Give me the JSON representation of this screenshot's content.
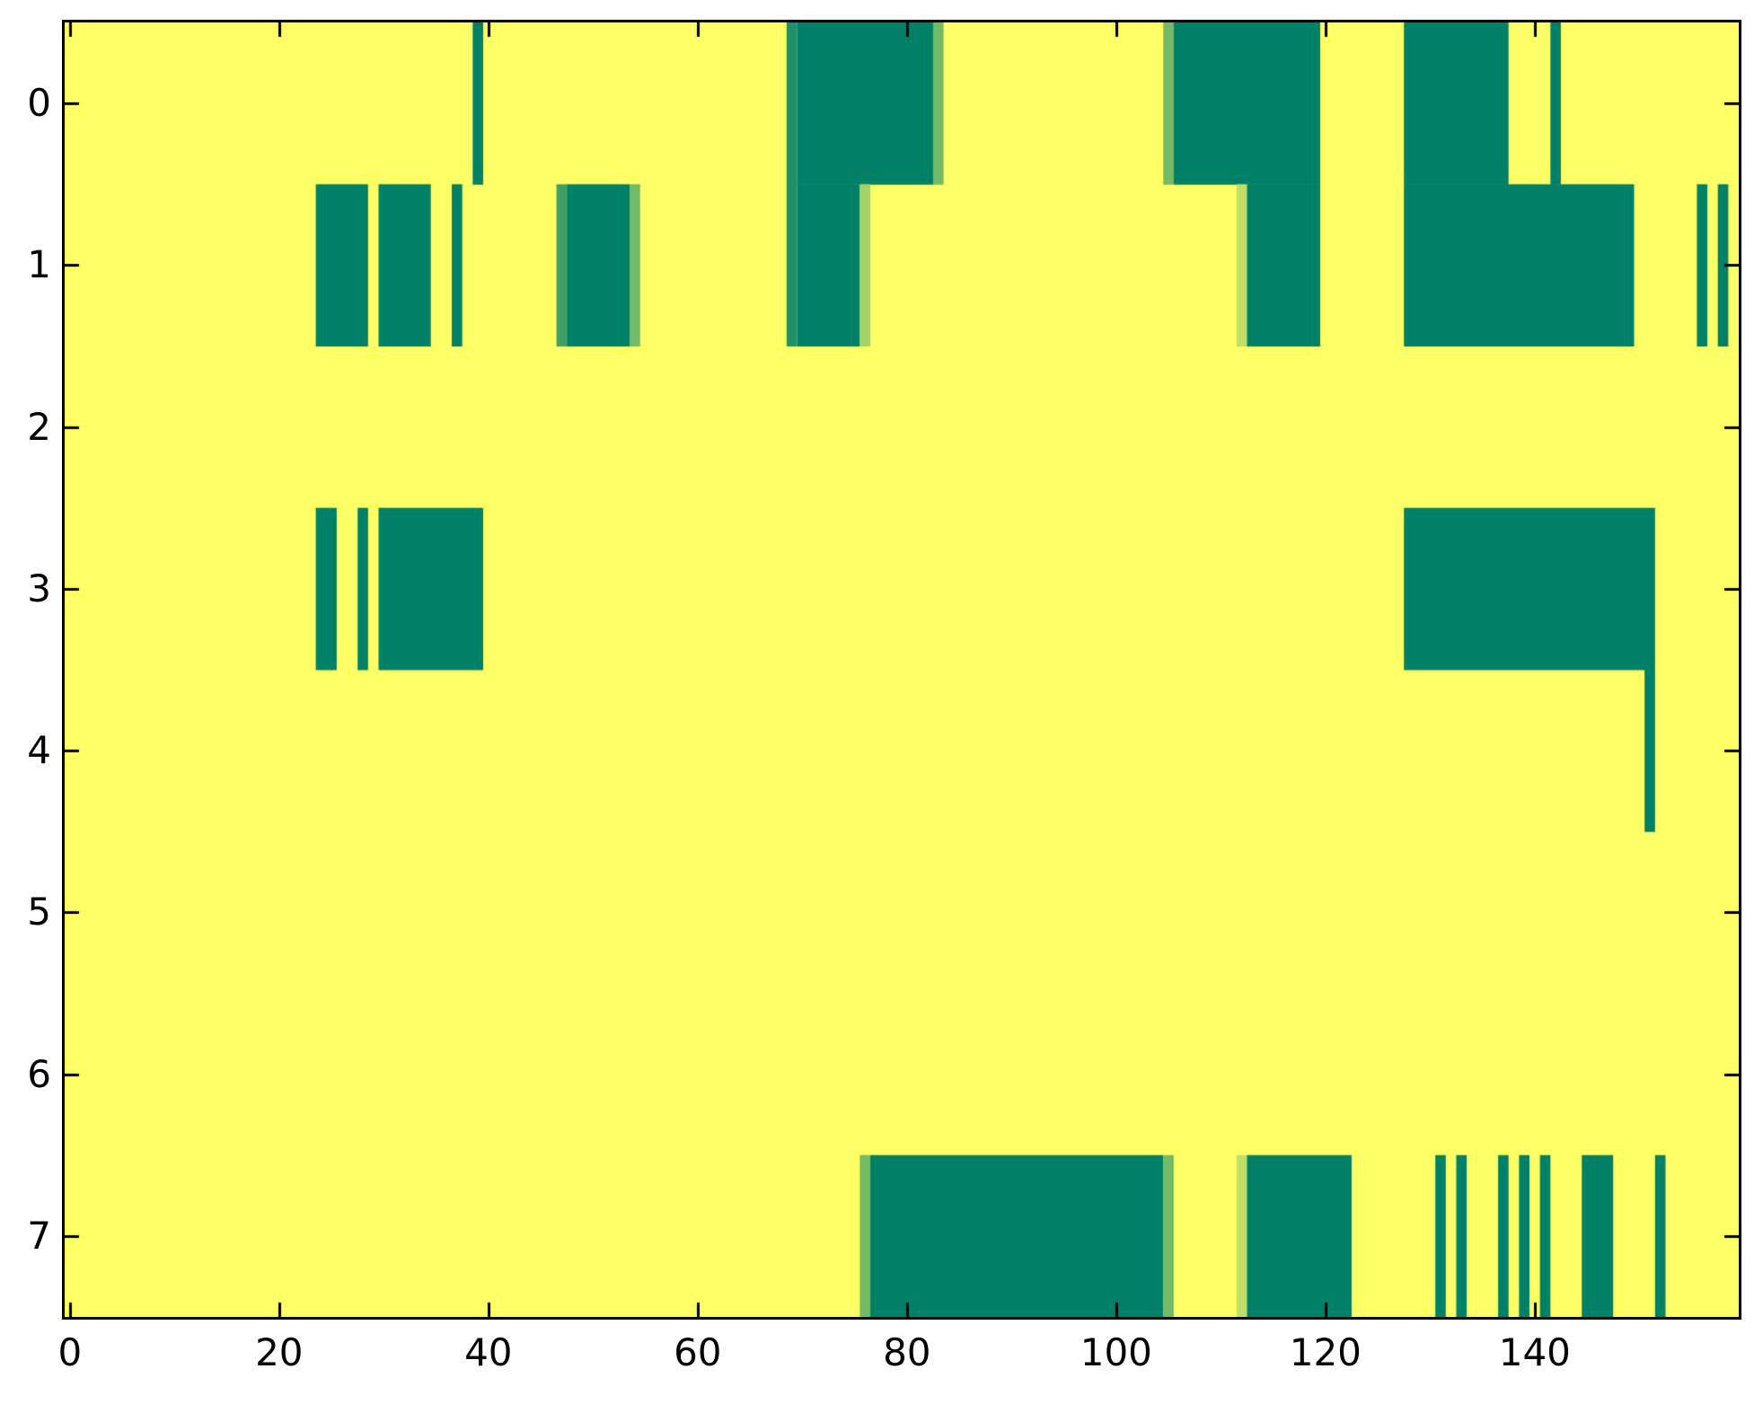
{
  "chart_data": {
    "type": "heatmap",
    "title": "",
    "xlabel": "",
    "ylabel": "",
    "xlim": [
      -0.5,
      159.5
    ],
    "ylim": [
      -0.5,
      7.5
    ],
    "n_cols": 160,
    "n_rows": 8,
    "grid": false,
    "legend": "none",
    "x_ticks": [
      0,
      20,
      40,
      60,
      80,
      100,
      120,
      140
    ],
    "y_ticks": [
      0,
      1,
      2,
      3,
      4,
      5,
      6,
      7
    ],
    "colors": {
      "background": "#FFFF66",
      "full_value": "#008066",
      "axis": "#000000",
      "colormap": "summer-reversed (intensity 0 = #FFFF66 yellow, 1 = #008066 teal)"
    },
    "value_legend": "segments are [start_col, end_col, intensity]; intensity 1 = dark teal, 0 = yellow background",
    "rows": [
      {
        "y": 0,
        "segments": [
          [
            39,
            39,
            1.0
          ],
          [
            69,
            69,
            0.87
          ],
          [
            70,
            82,
            1.0
          ],
          [
            83,
            83,
            0.55
          ],
          [
            105,
            105,
            0.55
          ],
          [
            106,
            119,
            1.0
          ],
          [
            128,
            137,
            1.0
          ],
          [
            142,
            142,
            1.0
          ]
        ]
      },
      {
        "y": 1,
        "segments": [
          [
            24,
            28,
            1.0
          ],
          [
            30,
            34,
            1.0
          ],
          [
            37,
            37,
            1.0
          ],
          [
            47,
            47,
            0.75
          ],
          [
            48,
            53,
            1.0
          ],
          [
            54,
            54,
            0.55
          ],
          [
            69,
            69,
            0.87
          ],
          [
            70,
            75,
            1.0
          ],
          [
            76,
            76,
            0.35
          ],
          [
            112,
            112,
            0.25
          ],
          [
            113,
            119,
            1.0
          ],
          [
            128,
            149,
            1.0
          ],
          [
            156,
            156,
            1.0
          ],
          [
            158,
            158,
            1.0
          ]
        ]
      },
      {
        "y": 2,
        "segments": []
      },
      {
        "y": 3,
        "segments": [
          [
            24,
            25,
            1.0
          ],
          [
            28,
            28,
            1.0
          ],
          [
            30,
            39,
            1.0
          ],
          [
            128,
            151,
            1.0
          ]
        ]
      },
      {
        "y": 4,
        "segments": [
          [
            151,
            151,
            1.0
          ]
        ]
      },
      {
        "y": 5,
        "segments": []
      },
      {
        "y": 6,
        "segments": []
      },
      {
        "y": 7,
        "segments": [
          [
            76,
            76,
            0.55
          ],
          [
            77,
            104,
            1.0
          ],
          [
            105,
            105,
            0.55
          ],
          [
            112,
            112,
            0.25
          ],
          [
            113,
            122,
            1.0
          ],
          [
            131,
            131,
            1.0
          ],
          [
            133,
            133,
            1.0
          ],
          [
            137,
            137,
            1.0
          ],
          [
            139,
            139,
            1.0
          ],
          [
            141,
            141,
            1.0
          ],
          [
            145,
            147,
            1.0
          ],
          [
            152,
            152,
            1.0
          ]
        ]
      }
    ]
  }
}
